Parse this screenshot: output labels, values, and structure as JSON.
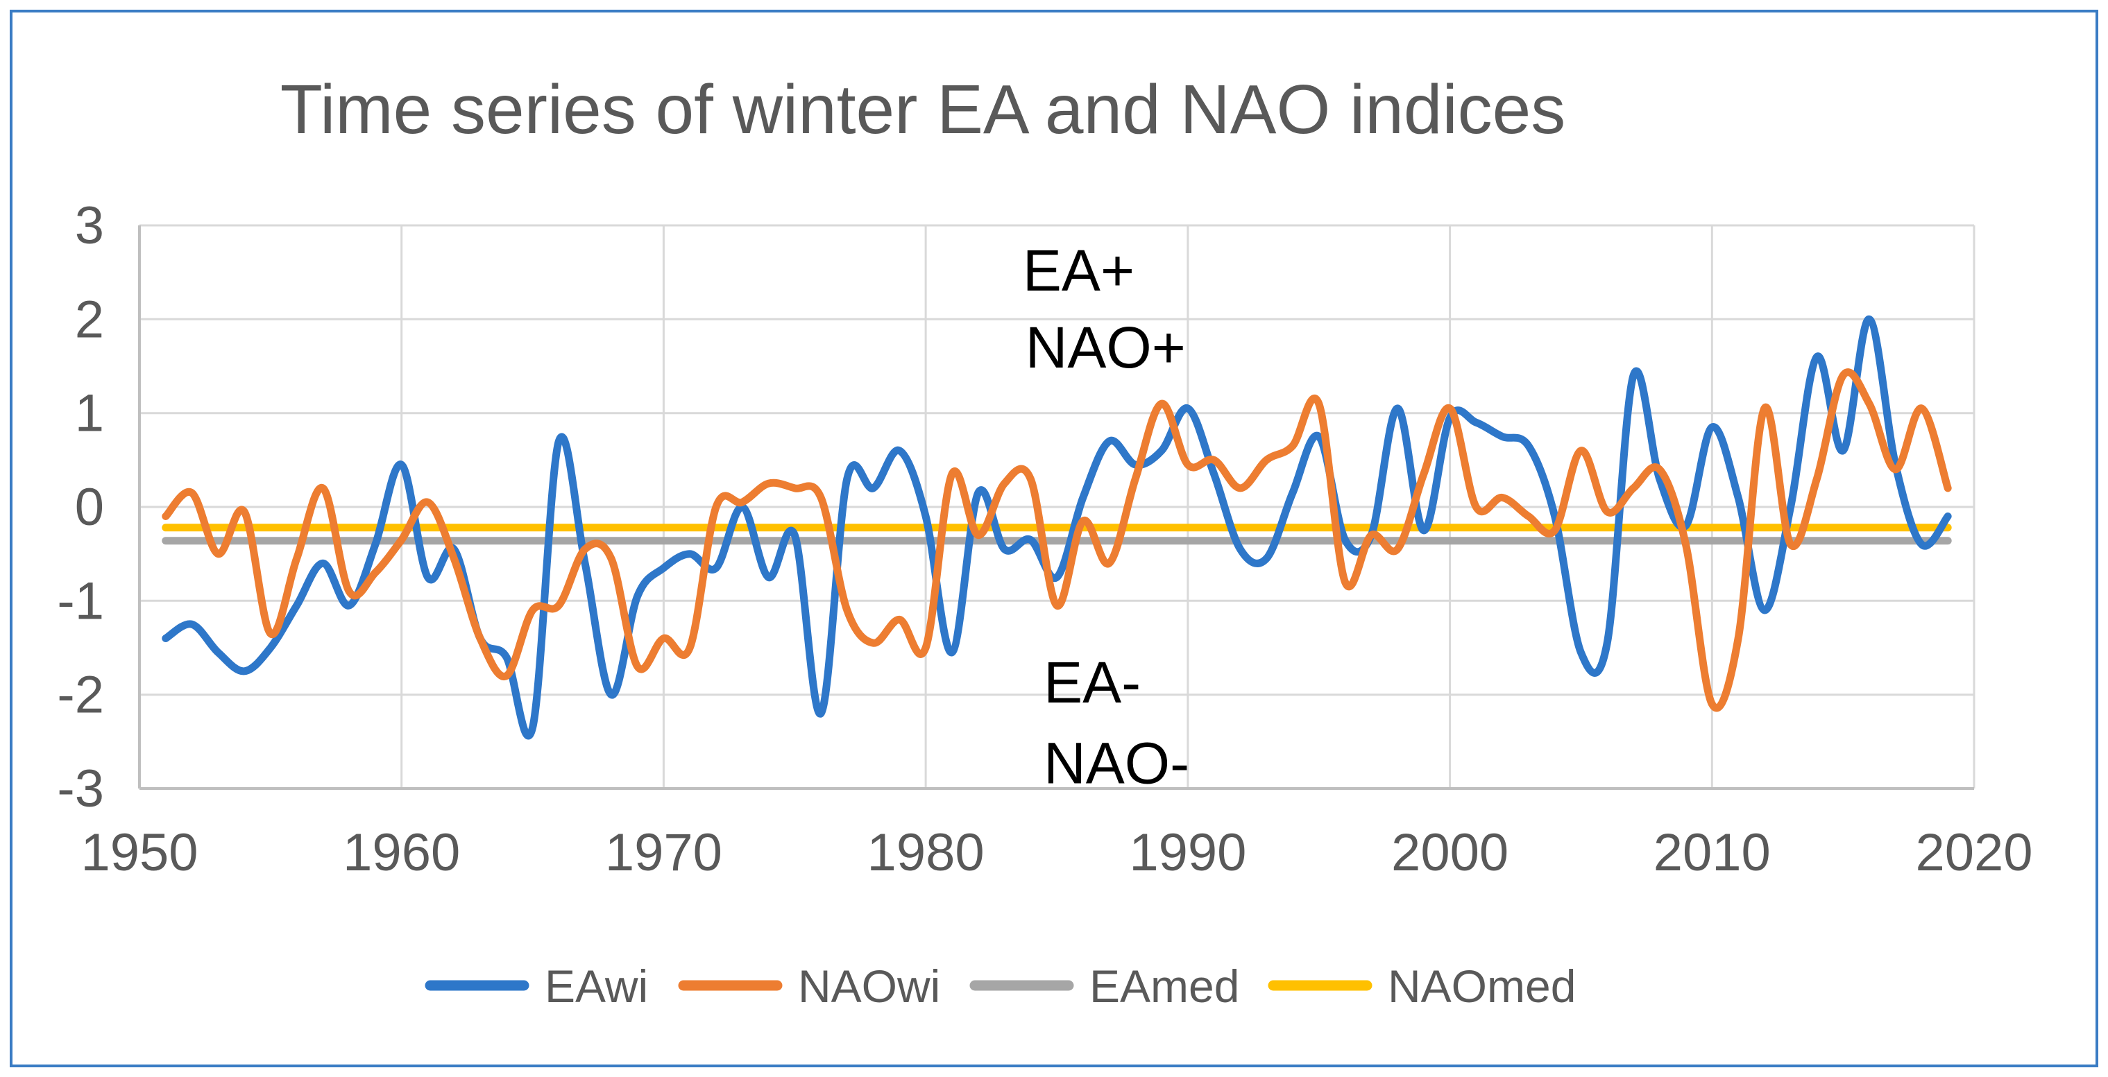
{
  "chart_data": {
    "type": "line",
    "title": "Time series of winter EA and NAO indices",
    "xlabel": "",
    "ylabel": "",
    "xlim": [
      1950,
      2020
    ],
    "ylim": [
      -3,
      3
    ],
    "xticks": [
      1950,
      1960,
      1970,
      1980,
      1990,
      2000,
      2010,
      2020
    ],
    "yticks": [
      3,
      2,
      1,
      0,
      -1,
      -2,
      -3
    ],
    "grid": true,
    "legend_position": "bottom",
    "years": [
      1951,
      1952,
      1953,
      1954,
      1955,
      1956,
      1957,
      1958,
      1959,
      1960,
      1961,
      1962,
      1963,
      1964,
      1965,
      1966,
      1967,
      1968,
      1969,
      1970,
      1971,
      1972,
      1973,
      1974,
      1975,
      1976,
      1977,
      1978,
      1979,
      1980,
      1981,
      1982,
      1983,
      1984,
      1985,
      1986,
      1987,
      1988,
      1989,
      1990,
      1991,
      1992,
      1993,
      1994,
      1995,
      1996,
      1997,
      1998,
      1999,
      2000,
      2001,
      2002,
      2003,
      2004,
      2005,
      2006,
      2007,
      2008,
      2009,
      2010,
      2011,
      2012,
      2013,
      2014,
      2015,
      2016,
      2017,
      2018,
      2019
    ],
    "series": [
      {
        "name": "EAwi",
        "type": "smooth-line",
        "color": "#2E77C9",
        "values": [
          -1.4,
          -1.25,
          -1.55,
          -1.75,
          -1.5,
          -1.05,
          -0.6,
          -1.05,
          -0.4,
          0.45,
          -0.75,
          -0.45,
          -1.4,
          -1.6,
          -2.35,
          0.7,
          -0.6,
          -2.0,
          -0.95,
          -0.65,
          -0.5,
          -0.65,
          0.0,
          -0.75,
          -0.3,
          -2.2,
          0.3,
          0.2,
          0.6,
          -0.1,
          -1.55,
          0.15,
          -0.45,
          -0.35,
          -0.75,
          0.1,
          0.7,
          0.45,
          0.6,
          1.05,
          0.35,
          -0.45,
          -0.55,
          0.15,
          0.75,
          -0.35,
          -0.3,
          1.05,
          -0.25,
          0.95,
          0.9,
          0.75,
          0.65,
          -0.1,
          -1.55,
          -1.45,
          1.4,
          0.3,
          -0.2,
          0.85,
          0.1,
          -1.1,
          0.0,
          1.6,
          0.6,
          2.0,
          0.45,
          -0.4,
          -0.1
        ]
      },
      {
        "name": "NAOwi",
        "type": "smooth-line",
        "color": "#ED7D31",
        "values": [
          -0.1,
          0.15,
          -0.5,
          -0.05,
          -1.35,
          -0.55,
          0.2,
          -0.9,
          -0.7,
          -0.35,
          0.05,
          -0.55,
          -1.4,
          -1.8,
          -1.1,
          -1.05,
          -0.45,
          -0.55,
          -1.7,
          -1.4,
          -1.5,
          0.0,
          0.05,
          0.25,
          0.2,
          0.1,
          -1.1,
          -1.45,
          -1.2,
          -1.5,
          0.35,
          -0.3,
          0.25,
          0.3,
          -1.05,
          -0.15,
          -0.6,
          0.3,
          1.1,
          0.45,
          0.5,
          0.2,
          0.5,
          0.65,
          1.1,
          -0.8,
          -0.3,
          -0.45,
          0.35,
          1.05,
          0.0,
          0.1,
          -0.1,
          -0.25,
          0.6,
          -0.05,
          0.2,
          0.4,
          -0.4,
          -2.1,
          -1.4,
          1.05,
          -0.4,
          0.3,
          1.4,
          1.1,
          0.4,
          1.05,
          0.2
        ]
      },
      {
        "name": "EAmed",
        "type": "constant-line",
        "color": "#A6A6A6",
        "constant": -0.36
      },
      {
        "name": "NAOmed",
        "type": "constant-line",
        "color": "#FFC000",
        "constant": -0.22
      }
    ],
    "annotations": [
      {
        "text": "EA+",
        "year": 1983.7,
        "value": 2.52
      },
      {
        "text": "NAO+",
        "year": 1983.8,
        "value": 1.7
      },
      {
        "text": "EA-",
        "year": 1984.5,
        "value": -1.87
      },
      {
        "text": "NAO-",
        "year": 1984.5,
        "value": -2.73
      }
    ]
  },
  "style": {
    "title_color": "#595959",
    "tick_label_color": "#595959",
    "legend_label_color": "#595959",
    "annotation_color": "#000000",
    "gridline_color": "#D9D9D9",
    "axis_line_color": "#BFBFBF",
    "frame_border_color": "#3A7CC4",
    "background_color": "#FFFFFF"
  }
}
